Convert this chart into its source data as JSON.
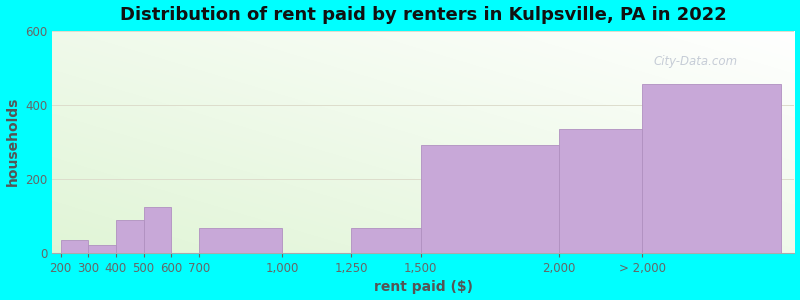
{
  "title": "Distribution of rent paid by renters in Kulpsville, PA in 2022",
  "xlabel": "rent paid ($)",
  "ylabel": "households",
  "background_outer": "#00FFFF",
  "bar_color": "#c8a8d8",
  "bar_edge_color": "#b090c0",
  "ylim": [
    0,
    600
  ],
  "yticks": [
    0,
    200,
    400,
    600
  ],
  "categories": [
    "200",
    "300",
    "400",
    "500",
    "600",
    "700",
    "1,000",
    "1,250",
    "1,500",
    "2,000",
    "> 2,000"
  ],
  "values": [
    35,
    22,
    90,
    125,
    0,
    68,
    0,
    68,
    290,
    335,
    455
  ],
  "title_fontsize": 13,
  "axis_label_fontsize": 10,
  "tick_fontsize": 8.5,
  "title_color": "#111111",
  "label_color": "#555555",
  "tick_color": "#666666",
  "grid_color": "#ddddcc",
  "watermark_text": "City-Data.com"
}
